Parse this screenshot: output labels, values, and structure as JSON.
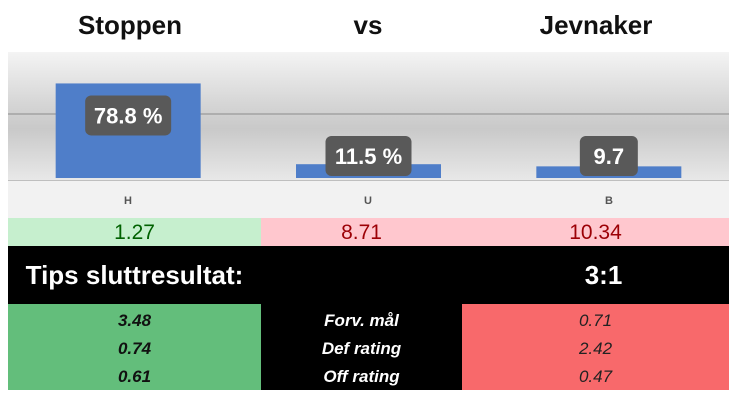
{
  "header": {
    "home_team": "Stoppen",
    "vs": "vs",
    "away_team": "Jevnaker"
  },
  "chart_data": {
    "type": "bar",
    "categories": [
      "H",
      "U",
      "B"
    ],
    "values": [
      78.8,
      11.5,
      9.7
    ],
    "data_labels": [
      "78.8 %",
      "11.5 %",
      "9.7"
    ],
    "bar_color": "#4f7ec9",
    "label_box_color": "#595959"
  },
  "odds": {
    "values": [
      "1.27",
      "8.71",
      "10.34"
    ],
    "colors": {
      "home_bg": "#c6efce",
      "home_fg": "#006100",
      "other_bg": "#ffc7ce",
      "other_fg": "#9c0006"
    }
  },
  "tips": {
    "label": "Tips sluttresultat:",
    "score": "3:1"
  },
  "stats": {
    "home": [
      "3.48",
      "0.74",
      "0.61"
    ],
    "labels": [
      "Forv. mål",
      "Def rating",
      "Off rating"
    ],
    "away": [
      "0.71",
      "2.42",
      "0.47"
    ]
  }
}
